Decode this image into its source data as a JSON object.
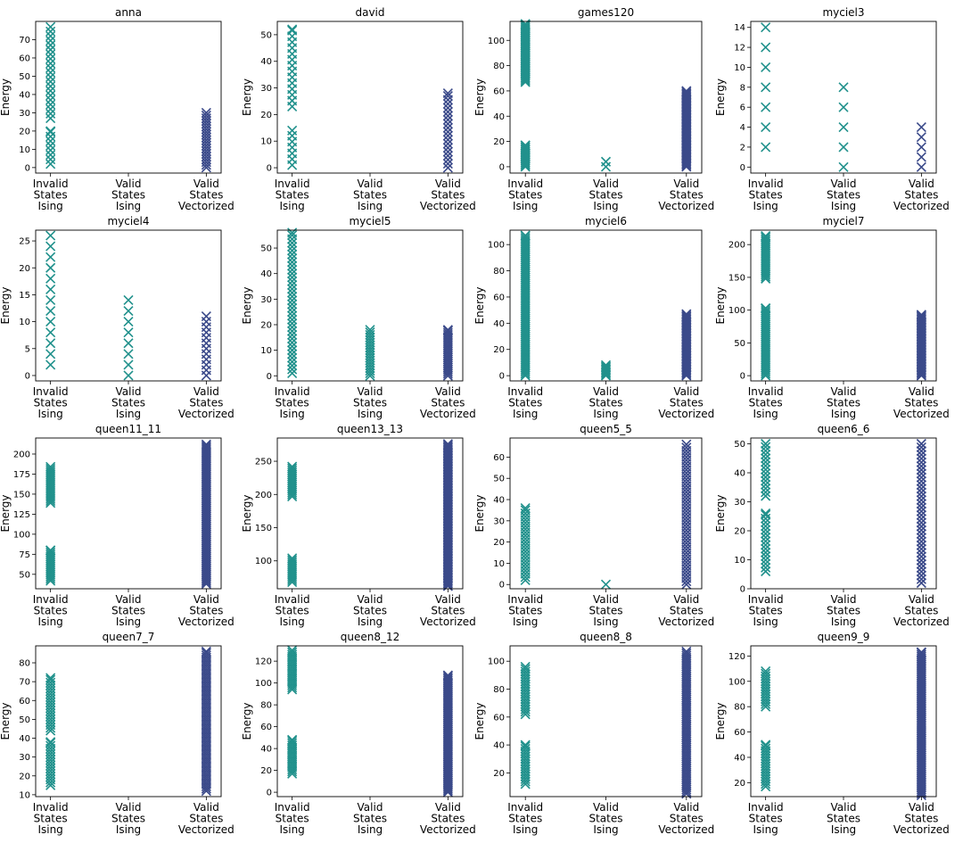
{
  "figure": {
    "ylabel": "Energy",
    "categories": [
      [
        "Invalid",
        "States",
        "Ising"
      ],
      [
        "Valid",
        "States",
        "Ising"
      ],
      [
        "Valid",
        "States",
        "Vectorized"
      ]
    ],
    "colors": {
      "ising": "#21918c",
      "vectorized": "#3b4a8a",
      "frame": "#000000"
    },
    "marker": "x-icon"
  },
  "chart_data": [
    {
      "type": "scatter",
      "title": "anna",
      "ylim": [
        -3,
        80
      ],
      "yticks": [
        0,
        10,
        20,
        30,
        40,
        50,
        60,
        70
      ],
      "series": [
        {
          "name": "Invalid States Ising",
          "ranges": [
            [
              2,
              20
            ],
            [
              27,
              77
            ]
          ],
          "step": 2.5
        },
        {
          "name": "Valid States Ising",
          "ranges": []
        },
        {
          "name": "Valid States Vectorized",
          "ranges": [
            [
              0,
              30
            ]
          ],
          "step": 1.5
        }
      ]
    },
    {
      "type": "scatter",
      "title": "david",
      "ylim": [
        -2,
        55
      ],
      "yticks": [
        0,
        10,
        20,
        30,
        40,
        50
      ],
      "series": [
        {
          "name": "Invalid States Ising",
          "ranges": [
            [
              1,
              14
            ],
            [
              23,
              52
            ]
          ],
          "step": 2.2
        },
        {
          "name": "Valid States Ising",
          "ranges": []
        },
        {
          "name": "Valid States Vectorized",
          "ranges": [
            [
              0,
              28
            ]
          ],
          "step": 1.5
        }
      ]
    },
    {
      "type": "scatter",
      "title": "games120",
      "ylim": [
        -5,
        115
      ],
      "yticks": [
        0,
        20,
        40,
        60,
        80,
        100
      ],
      "series": [
        {
          "name": "Invalid States Ising",
          "ranges": [
            [
              0,
              17
            ],
            [
              67,
              113
            ]
          ],
          "step": 1.2
        },
        {
          "name": "Valid States Ising",
          "ranges": [
            [
              0,
              4
            ]
          ],
          "step": 4
        },
        {
          "name": "Valid States Vectorized",
          "ranges": [
            [
              0,
              60
            ]
          ],
          "step": 1
        }
      ]
    },
    {
      "type": "scatter",
      "title": "myciel3",
      "ylim": [
        -0.6,
        14.6
      ],
      "yticks": [
        0,
        2,
        4,
        6,
        8,
        10,
        12,
        14
      ],
      "series": [
        {
          "name": "Invalid States Ising",
          "ranges": [
            [
              2,
              14
            ]
          ],
          "step": 2
        },
        {
          "name": "Valid States Ising",
          "ranges": [
            [
              0,
              8
            ]
          ],
          "step": 2
        },
        {
          "name": "Valid States Vectorized",
          "ranges": [
            [
              0,
              4
            ]
          ],
          "step": 1
        }
      ]
    },
    {
      "type": "scatter",
      "title": "myciel4",
      "ylim": [
        -1,
        27
      ],
      "yticks": [
        0,
        5,
        10,
        15,
        20,
        25
      ],
      "series": [
        {
          "name": "Invalid States Ising",
          "ranges": [
            [
              2,
              26
            ]
          ],
          "step": 2
        },
        {
          "name": "Valid States Ising",
          "ranges": [
            [
              0,
              14
            ]
          ],
          "step": 2
        },
        {
          "name": "Valid States Vectorized",
          "ranges": [
            [
              0,
              11
            ]
          ],
          "step": 1
        }
      ]
    },
    {
      "type": "scatter",
      "title": "myciel5",
      "ylim": [
        -2,
        57
      ],
      "yticks": [
        0,
        10,
        20,
        30,
        40,
        50
      ],
      "series": [
        {
          "name": "Invalid States Ising",
          "ranges": [
            [
              1,
              56
            ]
          ],
          "step": 1.5
        },
        {
          "name": "Valid States Ising",
          "ranges": [
            [
              0,
              18
            ]
          ],
          "step": 1
        },
        {
          "name": "Valid States Vectorized",
          "ranges": [
            [
              0,
              18
            ]
          ],
          "step": 0.8
        }
      ]
    },
    {
      "type": "scatter",
      "title": "myciel6",
      "ylim": [
        -4,
        111
      ],
      "yticks": [
        0,
        20,
        40,
        60,
        80,
        100
      ],
      "series": [
        {
          "name": "Invalid States Ising",
          "ranges": [
            [
              0,
              107
            ]
          ],
          "step": 1.5
        },
        {
          "name": "Valid States Ising",
          "ranges": [
            [
              0,
              8
            ]
          ],
          "step": 1
        },
        {
          "name": "Valid States Vectorized",
          "ranges": [
            [
              0,
              47
            ]
          ],
          "step": 1
        }
      ]
    },
    {
      "type": "scatter",
      "title": "myciel7",
      "ylim": [
        -8,
        222
      ],
      "yticks": [
        0,
        50,
        100,
        150,
        200
      ],
      "series": [
        {
          "name": "Invalid States Ising",
          "ranges": [
            [
              0,
              103
            ],
            [
              148,
              213
            ]
          ],
          "step": 3
        },
        {
          "name": "Valid States Ising",
          "ranges": []
        },
        {
          "name": "Valid States Vectorized",
          "ranges": [
            [
              0,
              93
            ]
          ],
          "step": 2
        }
      ]
    },
    {
      "type": "scatter",
      "title": "queen11_11",
      "ylim": [
        32,
        220
      ],
      "yticks": [
        50,
        75,
        100,
        125,
        150,
        175,
        200
      ],
      "series": [
        {
          "name": "Invalid States Ising",
          "ranges": [
            [
              42,
              80
            ],
            [
              139,
              184
            ]
          ],
          "step": 2.5
        },
        {
          "name": "Valid States Ising",
          "ranges": []
        },
        {
          "name": "Valid States Vectorized",
          "ranges": [
            [
              38,
              212
            ]
          ],
          "step": 2
        }
      ]
    },
    {
      "type": "scatter",
      "title": "queen13_13",
      "ylim": [
        58,
        285
      ],
      "yticks": [
        100,
        150,
        200,
        250
      ],
      "series": [
        {
          "name": "Invalid States Ising",
          "ranges": [
            [
              68,
              104
            ],
            [
              197,
              242
            ]
          ],
          "step": 3
        },
        {
          "name": "Valid States Ising",
          "ranges": []
        },
        {
          "name": "Valid States Vectorized",
          "ranges": [
            [
              62,
              276
            ]
          ],
          "step": 2
        }
      ]
    },
    {
      "type": "scatter",
      "title": "queen5_5",
      "ylim": [
        -2,
        69
      ],
      "yticks": [
        0,
        10,
        20,
        30,
        40,
        50,
        60
      ],
      "series": [
        {
          "name": "Invalid States Ising",
          "ranges": [
            [
              2,
              36
            ]
          ],
          "step": 1.5
        },
        {
          "name": "Valid States Ising",
          "ranges": [
            [
              0,
              0
            ]
          ],
          "step": 1
        },
        {
          "name": "Valid States Vectorized",
          "ranges": [
            [
              0,
              66
            ]
          ],
          "step": 1.5
        }
      ]
    },
    {
      "type": "scatter",
      "title": "queen6_6",
      "ylim": [
        0,
        52
      ],
      "yticks": [
        0,
        10,
        20,
        30,
        40,
        50
      ],
      "series": [
        {
          "name": "Invalid States Ising",
          "ranges": [
            [
              6,
              26
            ],
            [
              32,
              50
            ]
          ],
          "step": 1.3
        },
        {
          "name": "Valid States Ising",
          "ranges": []
        },
        {
          "name": "Valid States Vectorized",
          "ranges": [
            [
              2,
              50
            ]
          ],
          "step": 1.3
        }
      ]
    },
    {
      "type": "scatter",
      "title": "queen7_7",
      "ylim": [
        9,
        89
      ],
      "yticks": [
        10,
        20,
        30,
        40,
        50,
        60,
        70,
        80
      ],
      "series": [
        {
          "name": "Invalid States Ising",
          "ranges": [
            [
              15,
              38
            ],
            [
              44,
              72
            ]
          ],
          "step": 1.5
        },
        {
          "name": "Valid States Ising",
          "ranges": []
        },
        {
          "name": "Valid States Vectorized",
          "ranges": [
            [
              12,
              86
            ]
          ],
          "step": 1.2
        }
      ]
    },
    {
      "type": "scatter",
      "title": "queen8_12",
      "ylim": [
        -4,
        134
      ],
      "yticks": [
        0,
        20,
        40,
        60,
        80,
        100,
        120
      ],
      "series": [
        {
          "name": "Invalid States Ising",
          "ranges": [
            [
              17,
              48
            ],
            [
              94,
              130
            ]
          ],
          "step": 2
        },
        {
          "name": "Valid States Ising",
          "ranges": []
        },
        {
          "name": "Valid States Vectorized",
          "ranges": [
            [
              0,
              107
            ]
          ],
          "step": 1.5
        }
      ]
    },
    {
      "type": "scatter",
      "title": "queen8_8",
      "ylim": [
        3,
        111
      ],
      "yticks": [
        20,
        40,
        60,
        80,
        100
      ],
      "series": [
        {
          "name": "Invalid States Ising",
          "ranges": [
            [
              12,
              40
            ],
            [
              62,
              96
            ]
          ],
          "step": 1.8
        },
        {
          "name": "Valid States Ising",
          "ranges": []
        },
        {
          "name": "Valid States Vectorized",
          "ranges": [
            [
              5,
              107
            ]
          ],
          "step": 1.5
        }
      ]
    },
    {
      "type": "scatter",
      "title": "queen9_9",
      "ylim": [
        9,
        128
      ],
      "yticks": [
        20,
        40,
        60,
        80,
        100,
        120
      ],
      "series": [
        {
          "name": "Invalid States Ising",
          "ranges": [
            [
              17,
              50
            ],
            [
              80,
              108
            ]
          ],
          "step": 2
        },
        {
          "name": "Valid States Ising",
          "ranges": []
        },
        {
          "name": "Valid States Vectorized",
          "ranges": [
            [
              10,
              123
            ]
          ],
          "step": 1.5
        }
      ]
    }
  ]
}
